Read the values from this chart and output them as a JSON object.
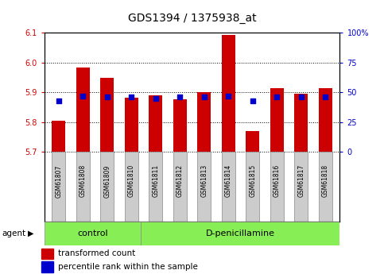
{
  "title": "GDS1394 / 1375938_at",
  "samples": [
    "GSM61807",
    "GSM61808",
    "GSM61809",
    "GSM61810",
    "GSM61811",
    "GSM61812",
    "GSM61813",
    "GSM61814",
    "GSM61815",
    "GSM61816",
    "GSM61817",
    "GSM61818"
  ],
  "transformed_count": [
    5.805,
    5.985,
    5.95,
    5.883,
    5.89,
    5.878,
    5.9,
    6.092,
    5.77,
    5.915,
    5.895,
    5.915
  ],
  "percentile_rank": [
    43,
    47,
    46,
    46,
    45,
    46,
    46,
    47,
    43,
    46,
    46,
    46
  ],
  "ylim_left": [
    5.7,
    6.1
  ],
  "ylim_right": [
    0,
    100
  ],
  "yticks_left": [
    5.7,
    5.8,
    5.9,
    6.0,
    6.1
  ],
  "yticks_right": [
    0,
    25,
    50,
    75,
    100
  ],
  "bar_color": "#cc0000",
  "dot_color": "#0000cc",
  "bar_width": 0.55,
  "control_label": "control",
  "treatment_label": "D-penicillamine",
  "agent_label": "agent",
  "control_count": 4,
  "treatment_count": 8,
  "legend_bar_label": "transformed count",
  "legend_dot_label": "percentile rank within the sample",
  "group_bg_color": "#88ee55",
  "tick_bg_color": "#cccccc",
  "ylabel_left_color": "#cc0000",
  "ylabel_right_color": "#0000cc",
  "title_fontsize": 10,
  "tick_fontsize": 7,
  "label_fontsize": 5.5,
  "group_fontsize": 8,
  "legend_fontsize": 7.5
}
